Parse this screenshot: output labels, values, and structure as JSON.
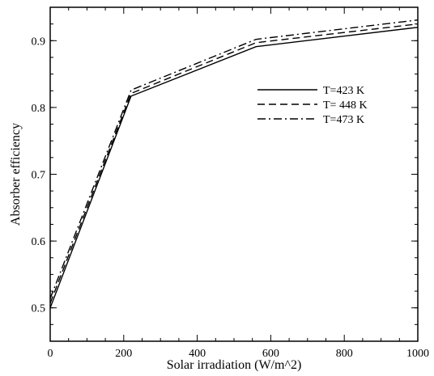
{
  "chart_data": {
    "type": "line",
    "title": "",
    "xlabel": "Solar irradiation (W/m^2)",
    "ylabel": "Absorber efficiency",
    "xlim": [
      0,
      1000
    ],
    "ylim": [
      0.45,
      0.95
    ],
    "xticks": [
      0,
      200,
      400,
      600,
      800,
      1000
    ],
    "yticks": [
      0.5,
      0.6,
      0.7,
      0.8,
      0.9
    ],
    "grid": false,
    "legend_position": "top-right",
    "series": [
      {
        "name": "T=423 K",
        "dash": "solid",
        "color": "#000000",
        "x": [
          0,
          220,
          560,
          1000
        ],
        "y": [
          0.5,
          0.817,
          0.891,
          0.92
        ]
      },
      {
        "name": "T= 448 K",
        "dash": "dashed",
        "color": "#000000",
        "x": [
          0,
          220,
          560,
          1000
        ],
        "y": [
          0.507,
          0.821,
          0.897,
          0.925
        ]
      },
      {
        "name": "T=473 K",
        "dash": "dash-dot",
        "color": "#000000",
        "x": [
          0,
          220,
          560,
          1000
        ],
        "y": [
          0.514,
          0.826,
          0.902,
          0.931
        ]
      }
    ]
  }
}
